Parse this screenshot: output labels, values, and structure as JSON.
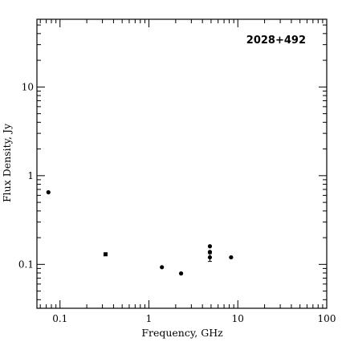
{
  "chart_data": {
    "type": "scatter",
    "title": "2028+492",
    "xlabel": "Frequency, GHz",
    "ylabel": "Flux Density, Jy",
    "x_scale": "log",
    "y_scale": "log",
    "xlim": [
      0.055,
      100
    ],
    "ylim": [
      0.032,
      58
    ],
    "x_ticks": [
      {
        "value": 0.1,
        "label": "0.1"
      },
      {
        "value": 1,
        "label": "1"
      },
      {
        "value": 10,
        "label": "10"
      },
      {
        "value": 100,
        "label": "100"
      }
    ],
    "y_ticks": [
      {
        "value": 0.1,
        "label": "0.1"
      },
      {
        "value": 1,
        "label": "1"
      },
      {
        "value": 10,
        "label": "10"
      }
    ],
    "grid": false,
    "legend": "none",
    "marker_color": "#000000",
    "series": [
      {
        "points": [
          {
            "x": 0.074,
            "y": 0.65,
            "marker": "circle"
          },
          {
            "x": 0.325,
            "y": 0.13,
            "marker": "square"
          },
          {
            "x": 1.4,
            "y": 0.093,
            "marker": "circle"
          },
          {
            "x": 2.3,
            "y": 0.079,
            "marker": "circle"
          },
          {
            "x": 4.85,
            "y": 0.16,
            "marker": "circle"
          },
          {
            "x": 4.85,
            "y": 0.138,
            "marker": "circle"
          },
          {
            "x": 4.85,
            "y": 0.12,
            "marker": "circle",
            "err_low": 0.108,
            "err_high": 0.132
          },
          {
            "x": 8.4,
            "y": 0.12,
            "marker": "circle"
          }
        ]
      }
    ]
  }
}
